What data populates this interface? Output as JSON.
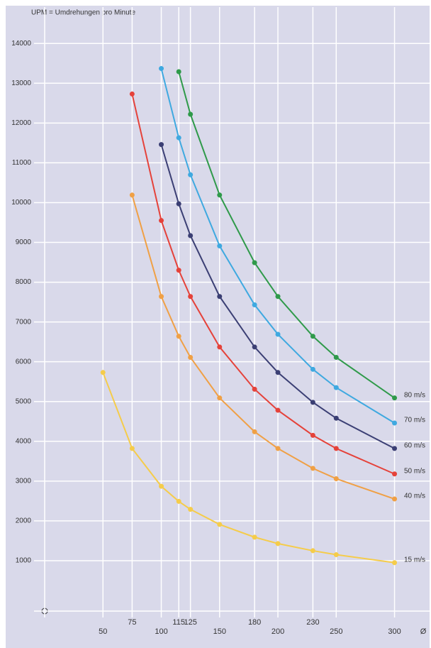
{
  "chart_data": {
    "type": "line",
    "title": "UPM = Umdrehungen pro Minute",
    "x_label": "Ø",
    "x": [
      50,
      75,
      100,
      115,
      125,
      150,
      180,
      200,
      230,
      250,
      300
    ],
    "xlim": [
      0,
      310
    ],
    "xticks": [
      50,
      75,
      100,
      115,
      125,
      150,
      180,
      200,
      230,
      250,
      300
    ],
    "ylim": [
      0,
      14700
    ],
    "yticks": [
      1000,
      2000,
      3000,
      4000,
      5000,
      6000,
      7000,
      8000,
      9000,
      10000,
      11000,
      12000,
      13000,
      14000
    ],
    "grid": true,
    "series": [
      {
        "name": "80 m/s",
        "color": "#2f9a4a",
        "values": [
          null,
          null,
          null,
          13290,
          12220,
          10190,
          8490,
          7640,
          6640,
          6110,
          5090
        ]
      },
      {
        "name": "70 m/s",
        "color": "#3fa9e0",
        "values": [
          null,
          null,
          13370,
          11630,
          10700,
          8910,
          7430,
          6690,
          5810,
          5350,
          4460
        ]
      },
      {
        "name": "60 m/s",
        "color": "#3b3f74",
        "values": [
          null,
          null,
          11460,
          9970,
          9170,
          7640,
          6370,
          5730,
          4980,
          4580,
          3820
        ]
      },
      {
        "name": "50 m/s",
        "color": "#e5423a",
        "values": [
          null,
          12730,
          9550,
          8300,
          7640,
          6370,
          5310,
          4780,
          4150,
          3820,
          3180
        ]
      },
      {
        "name": "40 m/s",
        "color": "#f0a045",
        "values": [
          null,
          10190,
          7640,
          6640,
          6110,
          5090,
          4240,
          3820,
          3320,
          3060,
          2550
        ]
      },
      {
        "name": "15 m/s",
        "color": "#f5cc4a",
        "values": [
          5730,
          3820,
          2870,
          2490,
          2290,
          1910,
          1590,
          1430,
          1250,
          1150,
          950
        ]
      }
    ]
  }
}
